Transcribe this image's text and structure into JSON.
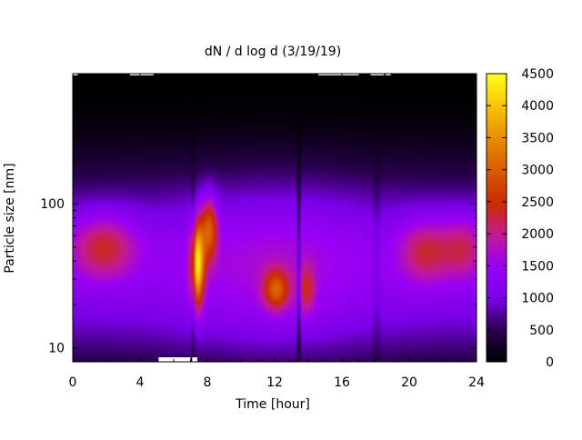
{
  "chart_data": {
    "type": "heatmap",
    "title": "dN / d log d (3/19/19)",
    "xlabel": "Time [hour]",
    "ylabel": "Particle size [nm]",
    "x_ticks": [
      "0",
      "4",
      "8",
      "12",
      "16",
      "20",
      "24"
    ],
    "x_tick_values": [
      0,
      4,
      8,
      12,
      16,
      20,
      24
    ],
    "y_ticks": [
      "10",
      "100"
    ],
    "y_tick_values": [
      10,
      100
    ],
    "xlim": [
      0,
      24
    ],
    "ylim": [
      8,
      800
    ],
    "y_scale": "log",
    "colorbar": {
      "ticks": [
        "0",
        "500",
        "1000",
        "1500",
        "2000",
        "2500",
        "3000",
        "3500",
        "4000",
        "4500"
      ],
      "tick_values": [
        0,
        500,
        1000,
        1500,
        2000,
        2500,
        3000,
        3500,
        4000,
        4500
      ],
      "range": [
        0,
        4500
      ],
      "palette": "gnuplot black-purple-red-orange-yellow"
    },
    "features": [
      {
        "hours": [
          0,
          4
        ],
        "size_nm": 50,
        "peak": 2300
      },
      {
        "hours": [
          6.8,
          8.6
        ],
        "size_nm": 45,
        "peak": 4200
      },
      {
        "hours": [
          11,
          14.5
        ],
        "size_nm": 25,
        "peak": 2600
      },
      {
        "hours": [
          19.5,
          24
        ],
        "size_nm": 45,
        "peak": 2300
      }
    ]
  }
}
